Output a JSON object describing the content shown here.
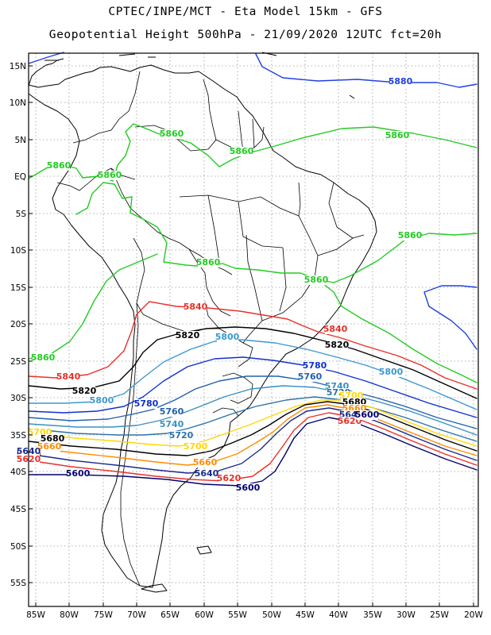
{
  "header": {
    "line1": "CPTEC/INPE/MCT -  Eta Model 15km - GFS",
    "line2": "Geopotential Height 500hPa - 21/09/2020 12UTC fct=20h"
  },
  "axes": {
    "lon_labels": [
      "85W",
      "80W",
      "75W",
      "70W",
      "65W",
      "60W",
      "55W",
      "50W",
      "45W",
      "40W",
      "35W",
      "30W",
      "25W",
      "20W"
    ],
    "lat_labels": [
      "15N",
      "10N",
      "5N",
      "EQ",
      "5S",
      "10S",
      "15S",
      "20S",
      "25S",
      "30S",
      "35S",
      "40S",
      "45S",
      "50S",
      "55S"
    ]
  },
  "contour_colors": {
    "5600": "#00006e",
    "5620": "#e8302a",
    "5640": "#1a2a8a",
    "5660": "#ff8c00",
    "5680": "#000000",
    "5700": "#ffd700",
    "5720": "#2b72a8",
    "5740": "#3a90c0",
    "5760": "#2360b0",
    "5780": "#1030d0",
    "5800": "#3c98d0",
    "5820": "#000000",
    "5840": "#e8302a",
    "5860": "#22cc22",
    "5880": "#2040e0"
  },
  "contour_labels": [
    {
      "text": "5880",
      "color": "#2040e0"
    },
    {
      "text": "5860",
      "color": "#22cc22"
    },
    {
      "text": "5860",
      "color": "#22cc22"
    },
    {
      "text": "5860",
      "color": "#22cc22"
    },
    {
      "text": "5860",
      "color": "#22cc22"
    },
    {
      "text": "5860",
      "color": "#22cc22"
    },
    {
      "text": "5860",
      "color": "#22cc22"
    },
    {
      "text": "5860",
      "color": "#22cc22"
    },
    {
      "text": "5860",
      "color": "#22cc22"
    },
    {
      "text": "5860",
      "color": "#22cc22"
    },
    {
      "text": "5840",
      "color": "#e8302a"
    },
    {
      "text": "5840",
      "color": "#e8302a"
    },
    {
      "text": "5840",
      "color": "#e8302a"
    },
    {
      "text": "5820",
      "color": "#000000"
    },
    {
      "text": "5820",
      "color": "#000000"
    },
    {
      "text": "5820",
      "color": "#000000"
    },
    {
      "text": "5800",
      "color": "#3c98d0"
    },
    {
      "text": "5800",
      "color": "#3c98d0"
    },
    {
      "text": "5800",
      "color": "#3c98d0"
    },
    {
      "text": "5780",
      "color": "#1030d0"
    },
    {
      "text": "5780",
      "color": "#1030d0"
    },
    {
      "text": "5760",
      "color": "#2360b0"
    },
    {
      "text": "5760",
      "color": "#2360b0"
    },
    {
      "text": "5740",
      "color": "#3a90c0"
    },
    {
      "text": "5740",
      "color": "#3a90c0"
    },
    {
      "text": "5720",
      "color": "#2b72a8"
    },
    {
      "text": "5720",
      "color": "#2b72a8"
    },
    {
      "text": "5700",
      "color": "#ffd700"
    },
    {
      "text": "5700",
      "color": "#ffd700"
    },
    {
      "text": "5700",
      "color": "#ffd700"
    },
    {
      "text": "5680",
      "color": "#000000"
    },
    {
      "text": "5680",
      "color": "#000000"
    },
    {
      "text": "5680",
      "color": "#000000"
    },
    {
      "text": "5660",
      "color": "#ff8c00"
    },
    {
      "text": "5660",
      "color": "#ff8c00"
    },
    {
      "text": "5660",
      "color": "#ff8c00"
    },
    {
      "text": "5640",
      "color": "#1a2a8a"
    },
    {
      "text": "5640",
      "color": "#1a2a8a"
    },
    {
      "text": "5640",
      "color": "#1a2a8a"
    },
    {
      "text": "5620",
      "color": "#e8302a"
    },
    {
      "text": "5620",
      "color": "#e8302a"
    },
    {
      "text": "5620",
      "color": "#e8302a"
    },
    {
      "text": "5600",
      "color": "#00006e"
    },
    {
      "text": "5600",
      "color": "#00006e"
    },
    {
      "text": "5600",
      "color": "#00006e"
    }
  ]
}
